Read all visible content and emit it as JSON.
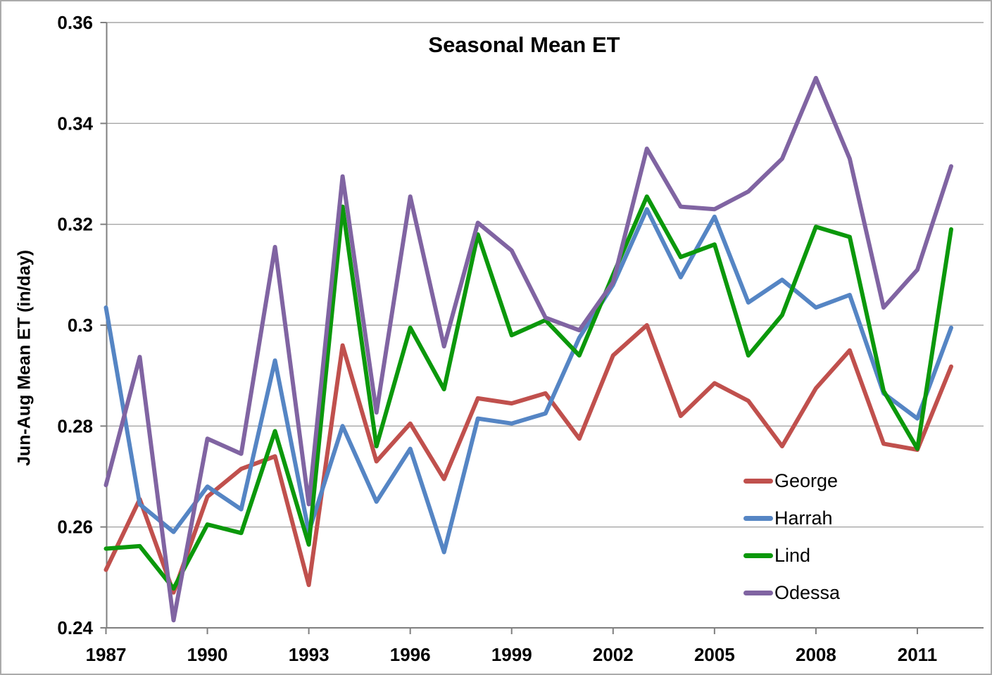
{
  "chart_data": {
    "type": "line",
    "title": "Seasonal Mean ET",
    "xlabel": "",
    "ylabel": "Jun-Aug Mean ET (in/day)",
    "x": [
      1987,
      1988,
      1989,
      1990,
      1991,
      1992,
      1993,
      1994,
      1995,
      1996,
      1997,
      1998,
      1999,
      2000,
      2001,
      2002,
      2003,
      2004,
      2005,
      2006,
      2007,
      2008,
      2009,
      2010,
      2011,
      2012
    ],
    "ylim": [
      0.24,
      0.36
    ],
    "xlim": [
      1987,
      2012
    ],
    "grid": true,
    "legend_position": "inside-right",
    "y_ticks": [
      {
        "label": "0.36",
        "value": 0.36
      },
      {
        "label": "0.34",
        "value": 0.34
      },
      {
        "label": "0.32",
        "value": 0.32
      },
      {
        "label": "0.3",
        "value": 0.3
      },
      {
        "label": "0.28",
        "value": 0.28
      },
      {
        "label": "0.26",
        "value": 0.26
      },
      {
        "label": "0.24",
        "value": 0.24
      }
    ],
    "x_ticks": [
      {
        "label": "1987",
        "value": 1987
      },
      {
        "label": "1990",
        "value": 1990
      },
      {
        "label": "1993",
        "value": 1993
      },
      {
        "label": "1996",
        "value": 1996
      },
      {
        "label": "1999",
        "value": 1999
      },
      {
        "label": "2002",
        "value": 2002
      },
      {
        "label": "2005",
        "value": 2005
      },
      {
        "label": "2008",
        "value": 2008
      },
      {
        "label": "2011",
        "value": 2011
      }
    ],
    "series": [
      {
        "name": "George",
        "color": "#c0504d",
        "values": [
          0.2515,
          0.2655,
          0.247,
          0.266,
          0.2715,
          0.274,
          0.2485,
          0.296,
          0.273,
          0.2805,
          0.2695,
          0.2855,
          0.2845,
          0.2865,
          0.2775,
          0.294,
          0.3,
          0.282,
          0.2885,
          0.285,
          0.276,
          0.2875,
          0.295,
          0.2765,
          0.2753,
          0.2918
        ]
      },
      {
        "name": "Harrah",
        "color": "#5585c4",
        "values": [
          0.3035,
          0.2645,
          0.259,
          0.268,
          0.2635,
          0.293,
          0.259,
          0.28,
          0.265,
          0.2755,
          0.255,
          0.2815,
          0.2805,
          0.2825,
          0.2975,
          0.308,
          0.323,
          0.3095,
          0.3215,
          0.3045,
          0.309,
          0.3035,
          0.306,
          0.2865,
          0.2815,
          0.2995
        ]
      },
      {
        "name": "Lind",
        "color": "#0b980b",
        "values": [
          0.2557,
          0.2562,
          0.2478,
          0.2605,
          0.2588,
          0.279,
          0.2565,
          0.3235,
          0.276,
          0.2995,
          0.2873,
          0.318,
          0.298,
          0.301,
          0.294,
          0.31,
          0.3255,
          0.3135,
          0.316,
          0.294,
          0.302,
          0.3195,
          0.3175,
          0.287,
          0.2755,
          0.319
        ]
      },
      {
        "name": "Odessa",
        "color": "#8064a2",
        "values": [
          0.2683,
          0.2937,
          0.2415,
          0.2775,
          0.2745,
          0.3155,
          0.2645,
          0.3295,
          0.2827,
          0.3255,
          0.2958,
          0.3203,
          0.3148,
          0.3015,
          0.299,
          0.3085,
          0.335,
          0.3235,
          0.323,
          0.3265,
          0.333,
          0.349,
          0.333,
          0.3035,
          0.311,
          0.3315
        ]
      }
    ],
    "colors": {
      "gridline": "#a6a6a6",
      "axis": "#7f7f7f",
      "text": "#000000"
    }
  }
}
